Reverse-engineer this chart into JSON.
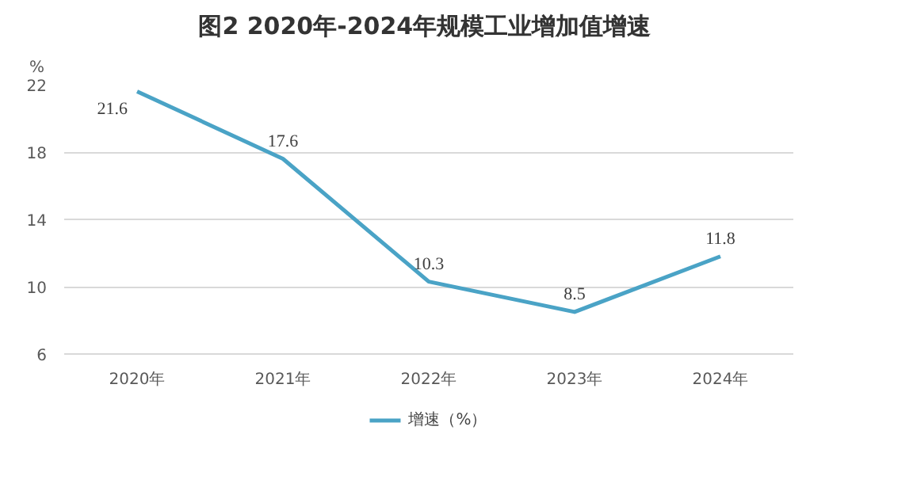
{
  "chart_data": {
    "type": "line",
    "title": "图2  2020年-2024年规模工业增加值增速",
    "ylabel": "%",
    "categories": [
      "2020年",
      "2021年",
      "2022年",
      "2023年",
      "2024年"
    ],
    "series": [
      {
        "name": "增速（%）",
        "color": "#4aa3c6",
        "values": [
          21.6,
          17.6,
          10.3,
          8.5,
          11.8
        ]
      }
    ],
    "ylim": [
      6,
      22
    ],
    "yticks": [
      6,
      10,
      14,
      18,
      22
    ],
    "grid": "y",
    "legend": "bottom",
    "data_labels": true,
    "marker": "none",
    "line_style": "solid"
  }
}
